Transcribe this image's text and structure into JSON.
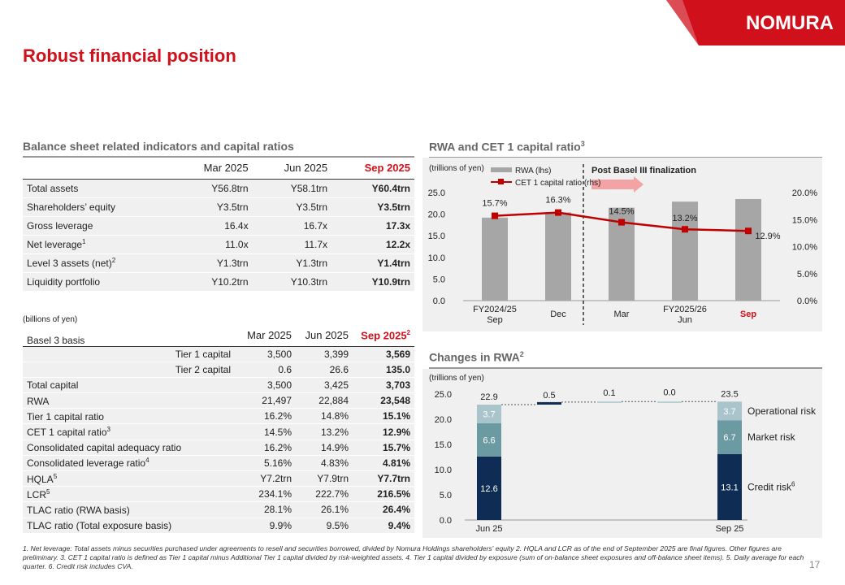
{
  "page_title": "Robust financial position",
  "brand": "NOMURA",
  "page_number": "17",
  "balance_section": {
    "title": "Balance sheet related indicators and capital ratios",
    "headers": [
      "Mar 2025",
      "Jun 2025",
      "Sep 2025"
    ],
    "rows": [
      {
        "label": "Total assets",
        "sup": "",
        "v": [
          "Y56.8trn",
          "Y58.1trn",
          "Y60.4trn"
        ]
      },
      {
        "label": "Shareholders’ equity",
        "sup": "",
        "v": [
          "Y3.5trn",
          "Y3.5trn",
          "Y3.5trn"
        ]
      },
      {
        "label": "Gross leverage",
        "sup": "",
        "v": [
          "16.4x",
          "16.7x",
          "17.3x"
        ]
      },
      {
        "label": "Net leverage",
        "sup": "1",
        "v": [
          "11.0x",
          "11.7x",
          "12.2x"
        ]
      },
      {
        "label": "Level 3 assets (net)",
        "sup": "2",
        "v": [
          "Y1.3trn",
          "Y1.3trn",
          "Y1.4trn"
        ]
      },
      {
        "label": "Liquidity portfolio",
        "sup": "",
        "v": [
          "Y10.2trn",
          "Y10.3trn",
          "Y10.9trn"
        ]
      }
    ]
  },
  "basel_section": {
    "unit": "(billions of yen)",
    "basis_label": "Basel 3 basis",
    "headers": [
      "Mar 2025",
      "Jun 2025",
      "Sep 2025"
    ],
    "header_sup": "2",
    "rows": [
      {
        "label": "Tier 1 capital",
        "sup": "",
        "indent": true,
        "v": [
          "3,500",
          "3,399",
          "3,569"
        ]
      },
      {
        "label": "Tier 2 capital",
        "sup": "",
        "indent": true,
        "v": [
          "0.6",
          "26.6",
          "135.0"
        ]
      },
      {
        "label": "Total capital",
        "sup": "",
        "indent": false,
        "v": [
          "3,500",
          "3,425",
          "3,703"
        ]
      },
      {
        "label": "RWA",
        "sup": "",
        "indent": false,
        "v": [
          "21,497",
          "22,884",
          "23,548"
        ]
      },
      {
        "label": "Tier 1 capital ratio",
        "sup": "",
        "indent": false,
        "v": [
          "16.2%",
          "14.8%",
          "15.1%"
        ]
      },
      {
        "label": "CET 1 capital ratio",
        "sup": "3",
        "indent": false,
        "v": [
          "14.5%",
          "13.2%",
          "12.9%"
        ]
      },
      {
        "label": "Consolidated capital adequacy ratio",
        "sup": "",
        "indent": false,
        "v": [
          "16.2%",
          "14.9%",
          "15.7%"
        ]
      },
      {
        "label": "Consolidated leverage ratio",
        "sup": "4",
        "indent": false,
        "v": [
          "5.16%",
          "4.83%",
          "4.81%"
        ]
      },
      {
        "label": "HQLA",
        "sup": "5",
        "indent": false,
        "v": [
          "Y7.2trn",
          "Y7.9trn",
          "Y7.7trn"
        ]
      },
      {
        "label": "LCR",
        "sup": "5",
        "indent": false,
        "v": [
          "234.1%",
          "222.7%",
          "216.5%"
        ]
      },
      {
        "label": "TLAC ratio (RWA basis)",
        "sup": "",
        "indent": false,
        "v": [
          "28.1%",
          "26.1%",
          "26.4%"
        ]
      },
      {
        "label": "TLAC ratio (Total exposure basis)",
        "sup": "",
        "indent": false,
        "v": [
          "9.9%",
          "9.5%",
          "9.4%"
        ]
      }
    ]
  },
  "chart_data": [
    {
      "type": "bar",
      "title": "RWA and CET 1 capital ratio",
      "title_sup": "3",
      "unit": "(trillions of yen)",
      "annotation": "Post Basel III finalization",
      "x_labels": [
        "FY2024/25\nSep",
        "Dec",
        "Mar",
        "FY2025/26\nJun",
        "Sep"
      ],
      "highlight_last_label": true,
      "series": [
        {
          "name": "RWA (lhs)",
          "type": "bar",
          "axis": "left",
          "color": "#a6a6a6",
          "values": [
            19.2,
            20.4,
            21.5,
            22.9,
            23.5
          ]
        },
        {
          "name": "CET 1 capital ratio (rhs)",
          "type": "line",
          "axis": "right",
          "color": "#c00000",
          "values": [
            15.7,
            16.3,
            14.5,
            13.2,
            12.9
          ],
          "labels": [
            "15.7%",
            "16.3%",
            "14.5%",
            "13.2%",
            "12.9%"
          ]
        }
      ],
      "left_axis": {
        "min": 0,
        "max": 25,
        "ticks": [
          "0.0",
          "5.0",
          "10.0",
          "15.0",
          "20.0",
          "25.0"
        ]
      },
      "right_axis": {
        "min": 0,
        "max": 20,
        "ticks": [
          "0.0%",
          "5.0%",
          "10.0%",
          "15.0%",
          "20.0%"
        ]
      }
    },
    {
      "type": "bar",
      "title": "Changes in RWA",
      "title_sup": "2",
      "unit": "(trillions of yen)",
      "y_axis": {
        "min": 0,
        "max": 25,
        "ticks": [
          "0.0",
          "5.0",
          "10.0",
          "15.0",
          "20.0",
          "25.0"
        ]
      },
      "x_labels": [
        "Jun 25",
        "Sep 25"
      ],
      "stacks": [
        {
          "total_label": "22.9",
          "segments": [
            12.6,
            6.6,
            3.7
          ],
          "segment_labels": [
            "12.6",
            "6.6",
            "3.7"
          ]
        },
        {
          "total_label": "23.5",
          "segments": [
            13.1,
            6.7,
            3.7
          ],
          "segment_labels": [
            "13.1",
            "6.7",
            "3.7"
          ]
        }
      ],
      "changes": [
        {
          "label": "0.5",
          "value": 0.5
        },
        {
          "label": "0.1",
          "value": 0.1
        },
        {
          "label": "0.0",
          "value": 0.0
        }
      ],
      "segment_colors": [
        "#0e2c54",
        "#6b9aa2",
        "#a9c5cb"
      ],
      "legend": [
        {
          "name": "Credit risk",
          "sup": "6"
        },
        {
          "name": "Market risk",
          "sup": ""
        },
        {
          "name": "Operational risk",
          "sup": ""
        }
      ]
    }
  ],
  "footnotes": "1.  Net leverage: Total assets minus securities purchased under agreements to resell and securities borrowed, divided by Nomura Holdings shareholders' equity     2.   HQLA and LCR as of the end of September 2025 are final figures. Other figures are preliminary.     3.   CET 1 capital ratio is defined as Tier 1 capital minus Additional Tier 1 capital divided by risk-weighted assets.     4.   Tier 1 capital divided by exposure (sum of on-balance sheet exposures and off-balance sheet items).     5.   Daily average for each quarter.     6.   Credit risk includes CVA."
}
